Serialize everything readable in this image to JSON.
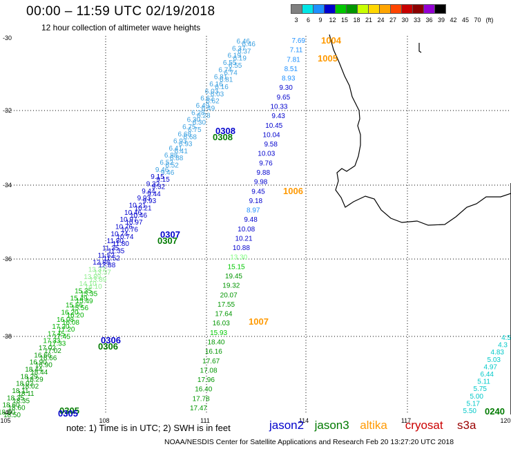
{
  "header": {
    "title": "00:00 – 11:59 UTC 02/19/2018",
    "subtitle": "12 hour collection of altimeter wave heights"
  },
  "legend": {
    "colors": [
      "#808080",
      "#00e6e6",
      "#1e90ff",
      "#0000cd",
      "#00c800",
      "#009600",
      "#c8ff00",
      "#ffd700",
      "#ffa500",
      "#ff4500",
      "#c80000",
      "#8b0000",
      "#9400d3",
      "#000000"
    ],
    "labels": [
      "3",
      "6",
      "9",
      "12",
      "15",
      "18",
      "21",
      "24",
      "27",
      "30",
      "33",
      "36",
      "39",
      "42",
      "45",
      "70",
      "(ft)"
    ]
  },
  "axes": {
    "y_labels": [
      "-30",
      "-32",
      "-34",
      "-36",
      "-38",
      "-40"
    ],
    "x_labels": [
      "105",
      "108",
      "111",
      "114",
      "117",
      "120"
    ]
  },
  "footer": {
    "note": "note: 1) Time is in UTC; 2) SWH is in feet",
    "satellites": [
      {
        "name": "jason2",
        "color": "#0000cc"
      },
      {
        "name": "jason3",
        "color": "#007a00"
      },
      {
        "name": "altika",
        "color": "#ff9900"
      },
      {
        "name": "cryosat",
        "color": "#cc0000"
      },
      {
        "name": "s3a",
        "color": "#990000"
      }
    ],
    "credit": "NOAA/NESDIS Center for Satellite Applications and Research    Feb 20 13:27:20 UTC 2018"
  },
  "time_labels": [
    {
      "text": "1004",
      "color": "#ff9900"
    },
    {
      "text": "1005",
      "color": "#ff9900"
    },
    {
      "text": "1006",
      "color": "#ff9900"
    },
    {
      "text": "1007",
      "color": "#ff9900"
    },
    {
      "text": "0308",
      "color": "#0000cc"
    },
    {
      "text": "0308",
      "color": "#007a00"
    },
    {
      "text": "0307",
      "color": "#0000cc"
    },
    {
      "text": "0307",
      "color": "#007a00"
    },
    {
      "text": "0306",
      "color": "#0000cc"
    },
    {
      "text": "0306",
      "color": "#007a00"
    },
    {
      "text": "0305",
      "color": "#007a00"
    },
    {
      "text": "0305",
      "color": "#0000cc"
    },
    {
      "text": "0240",
      "color": "#007a00"
    }
  ],
  "track_right": [
    {
      "v": "7.69",
      "c": "#1e90ff"
    },
    {
      "v": "7.11",
      "c": "#1e90ff"
    },
    {
      "v": "7.81",
      "c": "#1e90ff"
    },
    {
      "v": "8.51",
      "c": "#1e90ff"
    },
    {
      "v": "8.93",
      "c": "#1e90ff"
    },
    {
      "v": "9.30",
      "c": "#0000cd"
    },
    {
      "v": "9.65",
      "c": "#0000cd"
    },
    {
      "v": "10.33",
      "c": "#0000cd"
    },
    {
      "v": "9.43",
      "c": "#0000cd"
    },
    {
      "v": "10.45",
      "c": "#0000cd"
    },
    {
      "v": "10.04",
      "c": "#0000cd"
    },
    {
      "v": "9.58",
      "c": "#0000cd"
    },
    {
      "v": "10.03",
      "c": "#0000cd"
    },
    {
      "v": "9.76",
      "c": "#0000cd"
    },
    {
      "v": "9.88",
      "c": "#0000cd"
    },
    {
      "v": "9.98",
      "c": "#0000cd"
    },
    {
      "v": "9.45",
      "c": "#0000cd"
    },
    {
      "v": "9.18",
      "c": "#0000cd"
    },
    {
      "v": "8.97",
      "c": "#1e90ff"
    },
    {
      "v": "9.48",
      "c": "#0000cd"
    },
    {
      "v": "10.08",
      "c": "#0000cd"
    },
    {
      "v": "10.21",
      "c": "#0000cd"
    },
    {
      "v": "10.88",
      "c": "#0000cd"
    },
    {
      "v": "13.30",
      "c": "#7fff7f"
    },
    {
      "v": "15.15",
      "c": "#00c800"
    },
    {
      "v": "19.45",
      "c": "#009600"
    },
    {
      "v": "19.32",
      "c": "#009600"
    },
    {
      "v": "20.07",
      "c": "#009600"
    },
    {
      "v": "17.55",
      "c": "#009600"
    },
    {
      "v": "17.64",
      "c": "#009600"
    },
    {
      "v": "16.03",
      "c": "#009600"
    },
    {
      "v": "15.93",
      "c": "#00c800"
    },
    {
      "v": "18.40",
      "c": "#009600"
    },
    {
      "v": "16.16",
      "c": "#009600"
    },
    {
      "v": "17.67",
      "c": "#009600"
    },
    {
      "v": "17.08",
      "c": "#009600"
    },
    {
      "v": "17.96",
      "c": "#009600"
    },
    {
      "v": "16.40",
      "c": "#009600"
    },
    {
      "v": "17.78",
      "c": "#009600"
    },
    {
      "v": "17.47",
      "c": "#009600"
    }
  ],
  "track_left_values": [
    "6.46",
    "6.37",
    "6.19",
    "6.55",
    "6.74",
    "6.81",
    "6.16",
    "6.03",
    "6.62",
    "6.49",
    "6.28",
    "6.30",
    "6.75",
    "6.68",
    "6.93",
    "6.41",
    "6.88",
    "6.52",
    "9.46",
    "9.15",
    "9.32",
    "9.44",
    "9.93",
    "10.21",
    "10.46",
    "10.97",
    "10.76",
    "10.74",
    "11.80",
    "11.35",
    "11.52",
    "12.88",
    "13.37",
    "13.89",
    "14.10",
    "15.35",
    "15.49",
    "15.56",
    "16.20",
    "16.08",
    "17.20",
    "17.45",
    "17.33",
    "17.02",
    "16.66",
    "16.90",
    "18.44",
    "18.29",
    "18.02",
    "18.11",
    "18.35",
    "18.60",
    "18.50"
  ],
  "track_se_values": [
    "4.5",
    "4.3",
    "4.83",
    "5.03",
    "4.97",
    "6.44",
    "5.11",
    "5.75",
    "5.00",
    "5.17",
    "5.50"
  ]
}
